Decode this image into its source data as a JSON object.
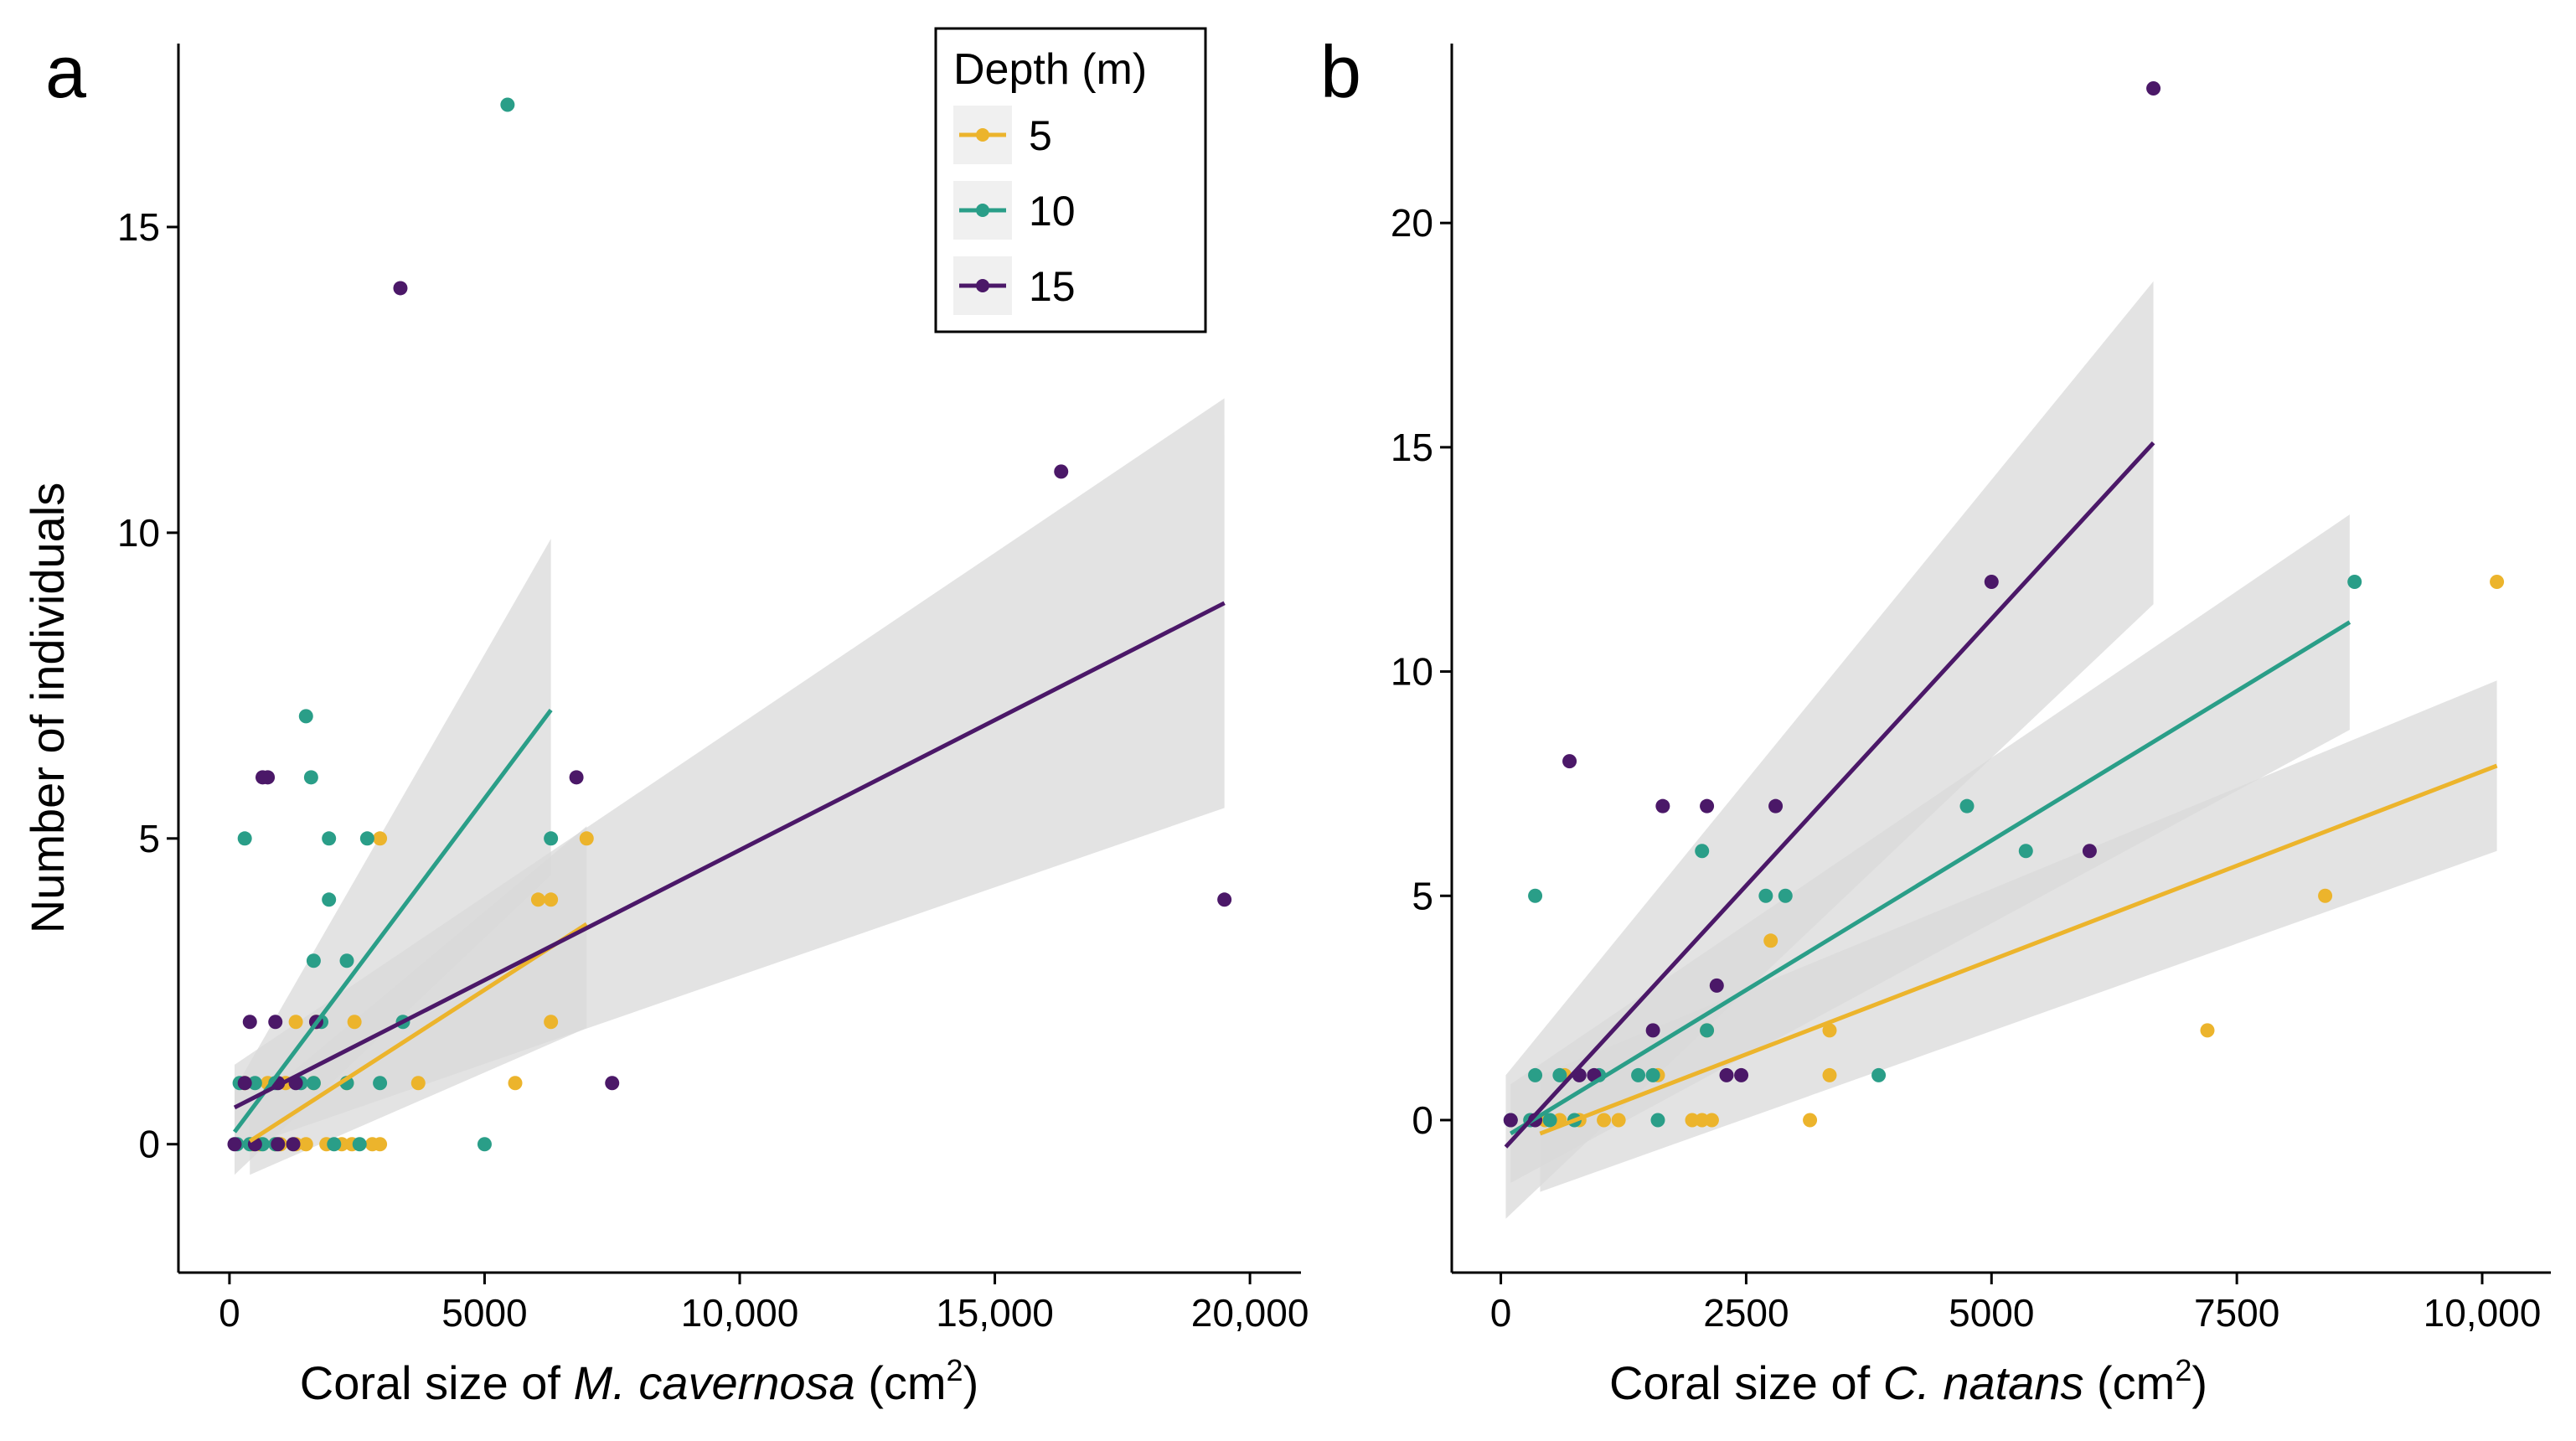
{
  "colors": {
    "5": "#ecb42c",
    "10": "#2a9e88",
    "15": "#4b1868",
    "ribbon": "#d9d9d9"
  },
  "legend": {
    "title": "Depth (m)",
    "items": [
      {
        "label": "5",
        "color": "#ecb42c"
      },
      {
        "label": "10",
        "color": "#2a9e88"
      },
      {
        "label": "15",
        "color": "#4b1868"
      }
    ]
  },
  "chart_data": [
    {
      "panel": "a",
      "type": "scatter",
      "xlabel_pre": "Coral size of ",
      "xlabel_species": "M. cavernosa",
      "xlabel_unit_open": " (cm",
      "xlabel_unit_sup": "2",
      "xlabel_unit_close": ")",
      "ylabel": "Number of individuals",
      "xlim": [
        -1000,
        21000
      ],
      "ylim": [
        -2.1,
        18
      ],
      "xticks": [
        0,
        5000,
        10000,
        15000,
        20000
      ],
      "xtick_labels": [
        "0",
        "5000",
        "10,000",
        "15,000",
        "20,000"
      ],
      "yticks": [
        0,
        5,
        10,
        15
      ],
      "ytick_labels": [
        "0",
        "5",
        "10",
        "15"
      ],
      "series": [
        {
          "name": "5",
          "points": [
            [
              450,
              0
            ],
            [
              600,
              0
            ],
            [
              900,
              0
            ],
            [
              1000,
              0
            ],
            [
              1300,
              0
            ],
            [
              1500,
              0
            ],
            [
              1900,
              0
            ],
            [
              2200,
              0
            ],
            [
              2400,
              0
            ],
            [
              2800,
              0
            ],
            [
              2950,
              0
            ],
            [
              300,
              1
            ],
            [
              750,
              1
            ],
            [
              1100,
              1
            ],
            [
              1650,
              1
            ],
            [
              2300,
              1
            ],
            [
              3700,
              1
            ],
            [
              5600,
              1
            ],
            [
              1300,
              2
            ],
            [
              1700,
              2
            ],
            [
              2450,
              2
            ],
            [
              6300,
              2
            ],
            [
              6050,
              4
            ],
            [
              6300,
              4
            ],
            [
              2950,
              5
            ],
            [
              7000,
              5
            ]
          ],
          "fit": {
            "x": [
              400,
              7000
            ],
            "y": [
              0.05,
              3.6
            ],
            "lo": [
              -0.5,
              1.9
            ],
            "hi": [
              0.6,
              5.2
            ]
          }
        },
        {
          "name": "10",
          "points": [
            [
              150,
              0
            ],
            [
              400,
              0
            ],
            [
              650,
              0
            ],
            [
              900,
              0
            ],
            [
              2050,
              0
            ],
            [
              2550,
              0
            ],
            [
              5000,
              0
            ],
            [
              200,
              1
            ],
            [
              500,
              1
            ],
            [
              900,
              1
            ],
            [
              1400,
              1
            ],
            [
              1650,
              1
            ],
            [
              2300,
              1
            ],
            [
              2950,
              1
            ],
            [
              1800,
              2
            ],
            [
              3400,
              2
            ],
            [
              1650,
              3
            ],
            [
              2300,
              3
            ],
            [
              1950,
              4
            ],
            [
              300,
              5
            ],
            [
              1950,
              5
            ],
            [
              2700,
              5
            ],
            [
              6300,
              5
            ],
            [
              1600,
              6
            ],
            [
              1500,
              7
            ],
            [
              5450,
              17
            ]
          ],
          "fit": {
            "x": [
              100,
              6300
            ],
            "y": [
              0.2,
              7.1
            ],
            "lo": [
              -0.5,
              4.4
            ],
            "hi": [
              0.9,
              9.9
            ]
          }
        },
        {
          "name": "15",
          "points": [
            [
              100,
              0
            ],
            [
              500,
              0
            ],
            [
              950,
              0
            ],
            [
              1250,
              0
            ],
            [
              300,
              1
            ],
            [
              950,
              1
            ],
            [
              1300,
              1
            ],
            [
              400,
              2
            ],
            [
              900,
              2
            ],
            [
              1700,
              2
            ],
            [
              7500,
              1
            ],
            [
              650,
              6
            ],
            [
              750,
              6
            ],
            [
              6800,
              6
            ],
            [
              3350,
              14
            ],
            [
              16300,
              11
            ],
            [
              19500,
              4
            ]
          ],
          "fit": {
            "x": [
              100,
              19500
            ],
            "y": [
              0.6,
              8.85
            ],
            "lo": [
              -0.1,
              5.5
            ],
            "hi": [
              1.3,
              12.2
            ]
          }
        }
      ]
    },
    {
      "panel": "b",
      "type": "scatter",
      "xlabel_pre": "Coral size of ",
      "xlabel_species": "C. natans",
      "xlabel_unit_open": " (cm",
      "xlabel_unit_sup": "2",
      "xlabel_unit_close": ")",
      "ylabel": "",
      "xlim": [
        -500,
        10700
      ],
      "ylim": [
        -3.4,
        24
      ],
      "xticks": [
        0,
        2500,
        5000,
        7500,
        10000
      ],
      "xtick_labels": [
        "0",
        "2500",
        "5000",
        "7500",
        "10,000"
      ],
      "yticks": [
        0,
        5,
        10,
        15,
        20
      ],
      "ytick_labels": [
        "0",
        "5",
        "10",
        "15",
        "20"
      ],
      "series": [
        {
          "name": "5",
          "points": [
            [
              450,
              0
            ],
            [
              600,
              0
            ],
            [
              800,
              0
            ],
            [
              1050,
              0
            ],
            [
              1200,
              0
            ],
            [
              1950,
              0
            ],
            [
              2050,
              0
            ],
            [
              2150,
              0
            ],
            [
              3150,
              0
            ],
            [
              650,
              1
            ],
            [
              1600,
              1
            ],
            [
              3350,
              1
            ],
            [
              2100,
              2
            ],
            [
              3350,
              2
            ],
            [
              7200,
              2
            ],
            [
              2750,
              4
            ],
            [
              8400,
              5
            ],
            [
              10150,
              12
            ]
          ],
          "fit": {
            "x": [
              400,
              10150
            ],
            "y": [
              -0.3,
              7.9
            ],
            "lo": [
              -1.6,
              6.0
            ],
            "hi": [
              1.0,
              9.8
            ]
          }
        },
        {
          "name": "10",
          "points": [
            [
              100,
              0
            ],
            [
              300,
              0
            ],
            [
              500,
              0
            ],
            [
              750,
              0
            ],
            [
              1600,
              0
            ],
            [
              350,
              1
            ],
            [
              600,
              1
            ],
            [
              1000,
              1
            ],
            [
              1400,
              1
            ],
            [
              1550,
              1
            ],
            [
              3850,
              1
            ],
            [
              2100,
              2
            ],
            [
              350,
              5
            ],
            [
              2700,
              5
            ],
            [
              2900,
              5
            ],
            [
              2050,
              6
            ],
            [
              5350,
              6
            ],
            [
              4750,
              7
            ],
            [
              8700,
              12
            ]
          ],
          "fit": {
            "x": [
              100,
              8650
            ],
            "y": [
              -0.3,
              11.1
            ],
            "lo": [
              -1.4,
              8.7
            ],
            "hi": [
              0.8,
              13.5
            ]
          }
        },
        {
          "name": "15",
          "points": [
            [
              100,
              0
            ],
            [
              350,
              0
            ],
            [
              800,
              1
            ],
            [
              950,
              1
            ],
            [
              2300,
              1
            ],
            [
              2450,
              1
            ],
            [
              1550,
              2
            ],
            [
              2200,
              3
            ],
            [
              6000,
              6
            ],
            [
              1650,
              7
            ],
            [
              2100,
              7
            ],
            [
              2800,
              7
            ],
            [
              700,
              8
            ],
            [
              5000,
              12
            ],
            [
              6650,
              23
            ]
          ],
          "fit": {
            "x": [
              50,
              6650
            ],
            "y": [
              -0.6,
              15.1
            ],
            "lo": [
              -2.2,
              11.5
            ],
            "hi": [
              1.0,
              18.7
            ]
          }
        }
      ]
    }
  ]
}
